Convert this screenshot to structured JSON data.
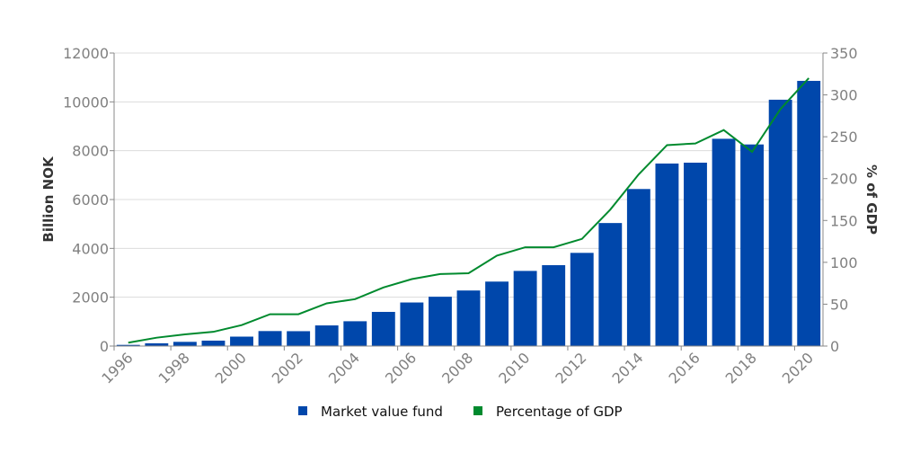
{
  "chart_data": {
    "type": "bar+line",
    "categories": [
      "1996",
      "1997",
      "1998",
      "1999",
      "2000",
      "2001",
      "2002",
      "2003",
      "2004",
      "2005",
      "2006",
      "2007",
      "2008",
      "2009",
      "2010",
      "2011",
      "2012",
      "2013",
      "2014",
      "2015",
      "2016",
      "2017",
      "2018",
      "2019",
      "2020"
    ],
    "x_tick_labels": [
      "1996",
      "1998",
      "2000",
      "2002",
      "2004",
      "2006",
      "2008",
      "2010",
      "2012",
      "2014",
      "2016",
      "2018",
      "2020"
    ],
    "ylabel": "Billion NOK",
    "y2label": "% of GDP",
    "ylim": [
      0,
      12000
    ],
    "y2lim": [
      0,
      350
    ],
    "y_ticks": [
      0,
      2000,
      4000,
      6000,
      8000,
      10000,
      12000
    ],
    "y2_ticks": [
      0,
      50,
      100,
      150,
      200,
      250,
      300,
      350
    ],
    "grid": true,
    "legend_placement": "bottom",
    "series": [
      {
        "name": "Market value fund",
        "type": "bar",
        "axis": "left",
        "color": "#0047ab",
        "values": [
          48,
          113,
          172,
          222,
          386,
          614,
          609,
          845,
          1016,
          1399,
          1784,
          2019,
          2275,
          2640,
          3077,
          3312,
          3816,
          5038,
          6431,
          7475,
          7510,
          8488,
          8256,
          10088,
          10860
        ]
      },
      {
        "name": "Percentage of GDP",
        "type": "line",
        "axis": "right",
        "color": "#008a2e",
        "values": [
          4,
          10,
          14,
          17,
          25,
          38,
          38,
          51,
          56,
          70,
          80,
          86,
          87,
          108,
          118,
          118,
          128,
          163,
          205,
          240,
          242,
          258,
          232,
          283,
          320
        ]
      }
    ]
  }
}
